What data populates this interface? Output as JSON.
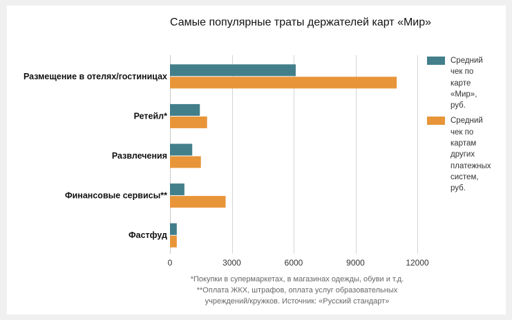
{
  "chart_data": {
    "type": "bar",
    "orientation": "horizontal",
    "title": "Самые популярные траты держателей карт «Мир»",
    "categories": [
      "Размещение в отелях/гостиницах",
      "Ретейл*",
      "Развлечения",
      "Финансовые сервисы**",
      "Фастфуд"
    ],
    "series": [
      {
        "name": "Средний чек по карте «Мир», руб.",
        "color": "#437f8a",
        "values": [
          6100,
          1450,
          1080,
          700,
          330
        ]
      },
      {
        "name": "Средний чек по картам других платежных систем, руб.",
        "color": "#e8953a",
        "values": [
          11000,
          1800,
          1500,
          2700,
          330
        ]
      }
    ],
    "xlim": [
      0,
      12000
    ],
    "xticks": [
      "0",
      "3000",
      "6000",
      "9000",
      "12000"
    ],
    "xlabel": "",
    "ylabel": "",
    "grid": "vertical",
    "legend_position": "right",
    "footnotes": [
      "*Покупки в супермаркетах, в магазинах одежды, обуви и т.д.",
      "**Оплата ЖКХ, штрафов, оплата услуг образовательных",
      "учреждений/кружков. Источник: «Русский стандарт»"
    ]
  }
}
